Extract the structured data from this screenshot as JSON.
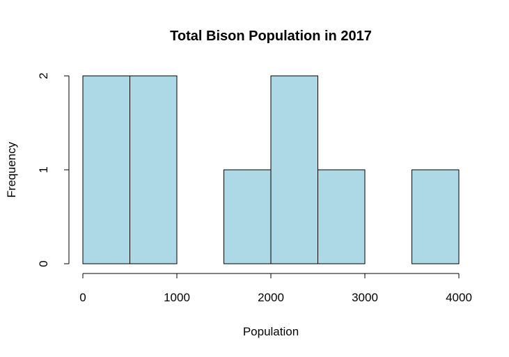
{
  "chart_data": {
    "type": "bar",
    "title": "Total Bison Population in 2017",
    "xlabel": "Population",
    "ylabel": "Frequency",
    "bins": [
      {
        "start": 0,
        "end": 500,
        "count": 2
      },
      {
        "start": 500,
        "end": 1000,
        "count": 2
      },
      {
        "start": 1000,
        "end": 1500,
        "count": 0
      },
      {
        "start": 1500,
        "end": 2000,
        "count": 1
      },
      {
        "start": 2000,
        "end": 2500,
        "count": 2
      },
      {
        "start": 2500,
        "end": 3000,
        "count": 1
      },
      {
        "start": 3000,
        "end": 3500,
        "count": 0
      },
      {
        "start": 3500,
        "end": 4000,
        "count": 1
      }
    ],
    "xlim": [
      0,
      4000
    ],
    "ylim": [
      0,
      2
    ],
    "x_ticks": [
      0,
      1000,
      2000,
      3000,
      4000
    ],
    "y_ticks": [
      0,
      1,
      2
    ],
    "bar_color": "#add8e6",
    "grid": false
  }
}
